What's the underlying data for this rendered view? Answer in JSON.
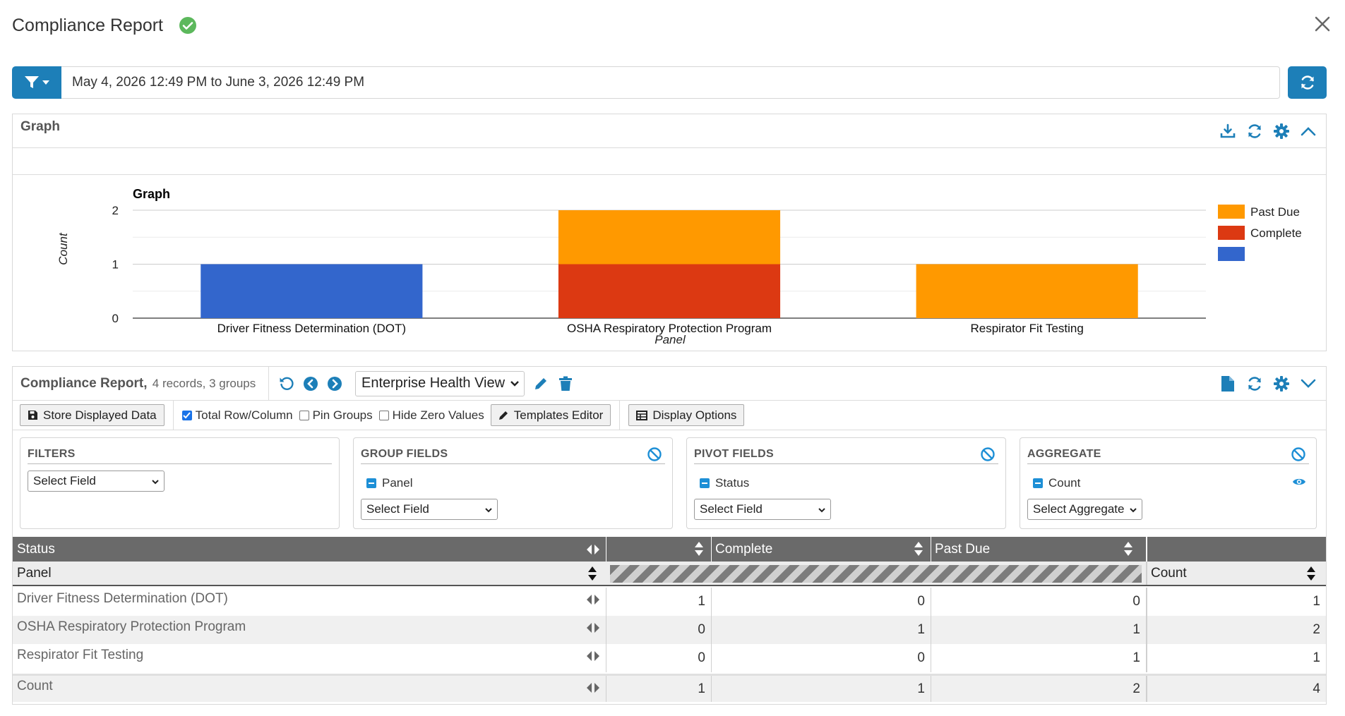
{
  "header": {
    "title": "Compliance Report"
  },
  "date_range": "May 4, 2026 12:49 PM to June 3, 2026 12:49 PM",
  "graph_panel": {
    "label": "Graph"
  },
  "chart_data": {
    "type": "bar",
    "stacked": true,
    "title": "Graph",
    "xlabel": "Panel",
    "ylabel": "Count",
    "ylim": [
      0,
      2
    ],
    "yticks": [
      "0",
      "1",
      "2"
    ],
    "categories": [
      "Driver Fitness Determination (DOT)",
      "OSHA Respiratory Protection Program",
      "Respirator Fit Testing"
    ],
    "series": [
      {
        "name": "",
        "color": "#3366cc",
        "values": [
          1,
          0,
          0
        ]
      },
      {
        "name": "Complete",
        "color": "#dc3912",
        "values": [
          0,
          1,
          0
        ]
      },
      {
        "name": "Past Due",
        "color": "#ff9900",
        "values": [
          0,
          1,
          1
        ]
      }
    ],
    "legend": [
      "Past Due",
      "Complete",
      ""
    ],
    "legend_position": "right",
    "grid": true
  },
  "report": {
    "title": "Compliance Report,",
    "subtitle": "4 records, 3 groups",
    "view": "Enterprise Health View",
    "store_btn": "Store Displayed Data",
    "opt_total": "Total Row/Column",
    "opt_pin": "Pin Groups",
    "opt_zero": "Hide Zero Values",
    "templates_btn": "Templates Editor",
    "display_btn": "Display Options"
  },
  "fields": {
    "filters": {
      "title": "FILTERS",
      "select": "Select Field"
    },
    "group": {
      "title": "GROUP FIELDS",
      "item": "Panel",
      "select": "Select Field"
    },
    "pivot": {
      "title": "PIVOT FIELDS",
      "item": "Status",
      "select": "Select Field"
    },
    "aggregate": {
      "title": "AGGREGATE",
      "item": "Count",
      "select": "Select Aggregate"
    }
  },
  "table": {
    "hdr_status": "Status",
    "hdr_complete": "Complete",
    "hdr_pastdue": "Past Due",
    "hdr_panel": "Panel",
    "hdr_count": "Count",
    "rows": [
      {
        "label": "Driver Fitness Determination (DOT)",
        "c0": "1",
        "c1": "0",
        "c2": "0",
        "total": "1"
      },
      {
        "label": "OSHA Respiratory Protection Program",
        "c0": "0",
        "c1": "1",
        "c2": "1",
        "total": "2"
      },
      {
        "label": "Respirator Fit Testing",
        "c0": "0",
        "c1": "0",
        "c2": "1",
        "total": "1"
      }
    ],
    "total_row": {
      "label": "Count",
      "c0": "1",
      "c1": "1",
      "c2": "2",
      "total": "4"
    }
  }
}
